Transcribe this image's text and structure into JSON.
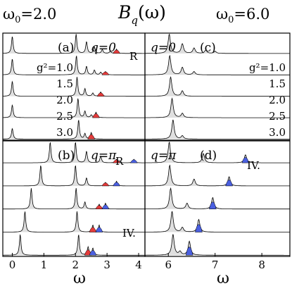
{
  "header": {
    "left_param": "ω",
    "left_sub": "0",
    "left_value": "=2.0",
    "title_main": "B",
    "title_sub": "q",
    "title_arg": "(ω)",
    "right_param": "ω",
    "right_sub": "0",
    "right_value": "=6.0"
  },
  "chart_data": [
    {
      "type": "line",
      "panel": "(a)",
      "q_label": "q=0",
      "omega0": 2.0,
      "xlim": [
        -0.3,
        4.2
      ],
      "curve_labels": [
        "g²=1.0",
        "1.5",
        "2.0",
        "2.5",
        "3.0"
      ],
      "g_squared": [
        1.0,
        1.5,
        2.0,
        2.5,
        3.0
      ],
      "annotations": [
        "R"
      ],
      "series": [
        {
          "baseline": 0.85,
          "peaks": [
            [
              0.0,
              0.8
            ],
            [
              2.02,
              0.9
            ],
            [
              2.35,
              0.55
            ],
            [
              2.6,
              0.3
            ],
            [
              2.85,
              0.18
            ],
            [
              3.1,
              0.1
            ]
          ],
          "marked": [
            3.3,
            0.2
          ]
        },
        {
          "baseline": 0.65,
          "peaks": [
            [
              0.0,
              0.75
            ],
            [
              2.03,
              0.9
            ],
            [
              2.35,
              0.4
            ],
            [
              2.6,
              0.22
            ],
            [
              2.8,
              0.12
            ]
          ],
          "marked": [
            2.95,
            0.15
          ]
        },
        {
          "baseline": 0.45,
          "peaks": [
            [
              0.0,
              0.7
            ],
            [
              2.05,
              0.9
            ],
            [
              2.3,
              0.35
            ],
            [
              2.55,
              0.15
            ]
          ],
          "marked": [
            2.8,
            0.2
          ]
        },
        {
          "baseline": 0.25,
          "peaks": [
            [
              0.0,
              0.6
            ],
            [
              2.08,
              0.9
            ],
            [
              2.3,
              0.3
            ],
            [
              2.5,
              0.12
            ]
          ],
          "marked": [
            2.65,
            0.25
          ]
        },
        {
          "baseline": 0.05,
          "peaks": [
            [
              0.0,
              0.5
            ],
            [
              2.1,
              0.9
            ],
            [
              2.3,
              0.25
            ]
          ],
          "marked": [
            2.5,
            0.3
          ]
        }
      ]
    },
    {
      "type": "line",
      "panel": "(b)",
      "q_label": "q=π",
      "omega0": 2.0,
      "xlim": [
        -0.3,
        4.2
      ],
      "x_ticks": [
        0,
        1,
        2,
        3,
        4
      ],
      "xlabel": "ω",
      "annotations": [
        "R",
        "IV."
      ],
      "series": [
        {
          "baseline": 0.85,
          "peaks": [
            [
              1.2,
              0.9
            ],
            [
              2.0,
              0.9
            ],
            [
              2.35,
              0.5
            ],
            [
              2.8,
              0.3
            ]
          ],
          "marked_red": [
            3.3,
            0.15
          ],
          "marked_blue": [
            3.85,
            0.15
          ]
        },
        {
          "baseline": 0.65,
          "peaks": [
            [
              0.9,
              0.9
            ],
            [
              2.0,
              0.9
            ],
            [
              2.35,
              0.35
            ]
          ],
          "marked_red": [
            2.95,
            0.15
          ],
          "marked_blue": [
            3.3,
            0.2
          ]
        },
        {
          "baseline": 0.45,
          "peaks": [
            [
              0.6,
              0.9
            ],
            [
              2.02,
              0.9
            ],
            [
              2.3,
              0.3
            ]
          ],
          "marked_red": [
            2.75,
            0.2
          ],
          "marked_blue": [
            2.95,
            0.25
          ]
        },
        {
          "baseline": 0.25,
          "peaks": [
            [
              0.4,
              0.9
            ],
            [
              2.05,
              0.9
            ]
          ],
          "marked_red": [
            2.55,
            0.3
          ],
          "marked_blue": [
            2.75,
            0.3
          ]
        },
        {
          "baseline": 0.05,
          "peaks": [
            [
              0.25,
              0.9
            ],
            [
              2.1,
              0.9
            ]
          ],
          "marked_red": [
            2.4,
            0.35
          ],
          "marked_blue": [
            2.55,
            0.3
          ]
        }
      ]
    },
    {
      "type": "line",
      "panel": "(c)",
      "q_label": "q=0",
      "omega0": 6.0,
      "xlim": [
        5.5,
        8.6
      ],
      "curve_labels": [
        "g²=1.0",
        "1.5",
        "2.0",
        "2.5",
        "3.0"
      ],
      "series": [
        {
          "baseline": 0.85,
          "peaks": [
            [
              6.02,
              0.9
            ],
            [
              6.3,
              0.45
            ],
            [
              6.55,
              0.25
            ],
            [
              6.8,
              0.15
            ],
            [
              7.0,
              0.1
            ]
          ]
        },
        {
          "baseline": 0.65,
          "peaks": [
            [
              6.03,
              0.9
            ],
            [
              6.3,
              0.35
            ],
            [
              6.55,
              0.15
            ]
          ]
        },
        {
          "baseline": 0.45,
          "peaks": [
            [
              6.05,
              0.9
            ],
            [
              6.3,
              0.25
            ]
          ]
        },
        {
          "baseline": 0.25,
          "peaks": [
            [
              6.08,
              0.9
            ],
            [
              6.3,
              0.2
            ]
          ]
        },
        {
          "baseline": 0.05,
          "peaks": [
            [
              6.1,
              0.9
            ],
            [
              6.3,
              0.15
            ]
          ]
        }
      ]
    },
    {
      "type": "line",
      "panel": "(d)",
      "q_label": "q=π",
      "omega0": 6.0,
      "xlim": [
        5.5,
        8.6
      ],
      "x_ticks": [
        6,
        7,
        8
      ],
      "xlabel": "ω",
      "annotations": [
        "IV."
      ],
      "series": [
        {
          "baseline": 0.85,
          "peaks": [
            [
              6.02,
              0.9
            ],
            [
              6.75,
              0.4
            ]
          ],
          "marked_blue": [
            7.65,
            0.35
          ]
        },
        {
          "baseline": 0.65,
          "peaks": [
            [
              6.03,
              0.9
            ],
            [
              6.55,
              0.3
            ]
          ],
          "marked_blue": [
            7.3,
            0.4
          ]
        },
        {
          "baseline": 0.45,
          "peaks": [
            [
              6.05,
              0.9
            ],
            [
              6.4,
              0.25
            ]
          ],
          "marked_blue": [
            6.95,
            0.5
          ]
        },
        {
          "baseline": 0.25,
          "peaks": [
            [
              6.08,
              0.9
            ],
            [
              6.3,
              0.2
            ]
          ],
          "marked_blue": [
            6.65,
            0.55
          ]
        },
        {
          "baseline": 0.05,
          "peaks": [
            [
              6.1,
              0.9
            ],
            [
              6.25,
              0.15
            ]
          ],
          "marked_blue": [
            6.45,
            0.6
          ]
        }
      ]
    }
  ],
  "colors": {
    "red_fill": "#e43b3b",
    "blue_fill": "#4a5fe0",
    "grey_fill": "#c9c9c9"
  }
}
